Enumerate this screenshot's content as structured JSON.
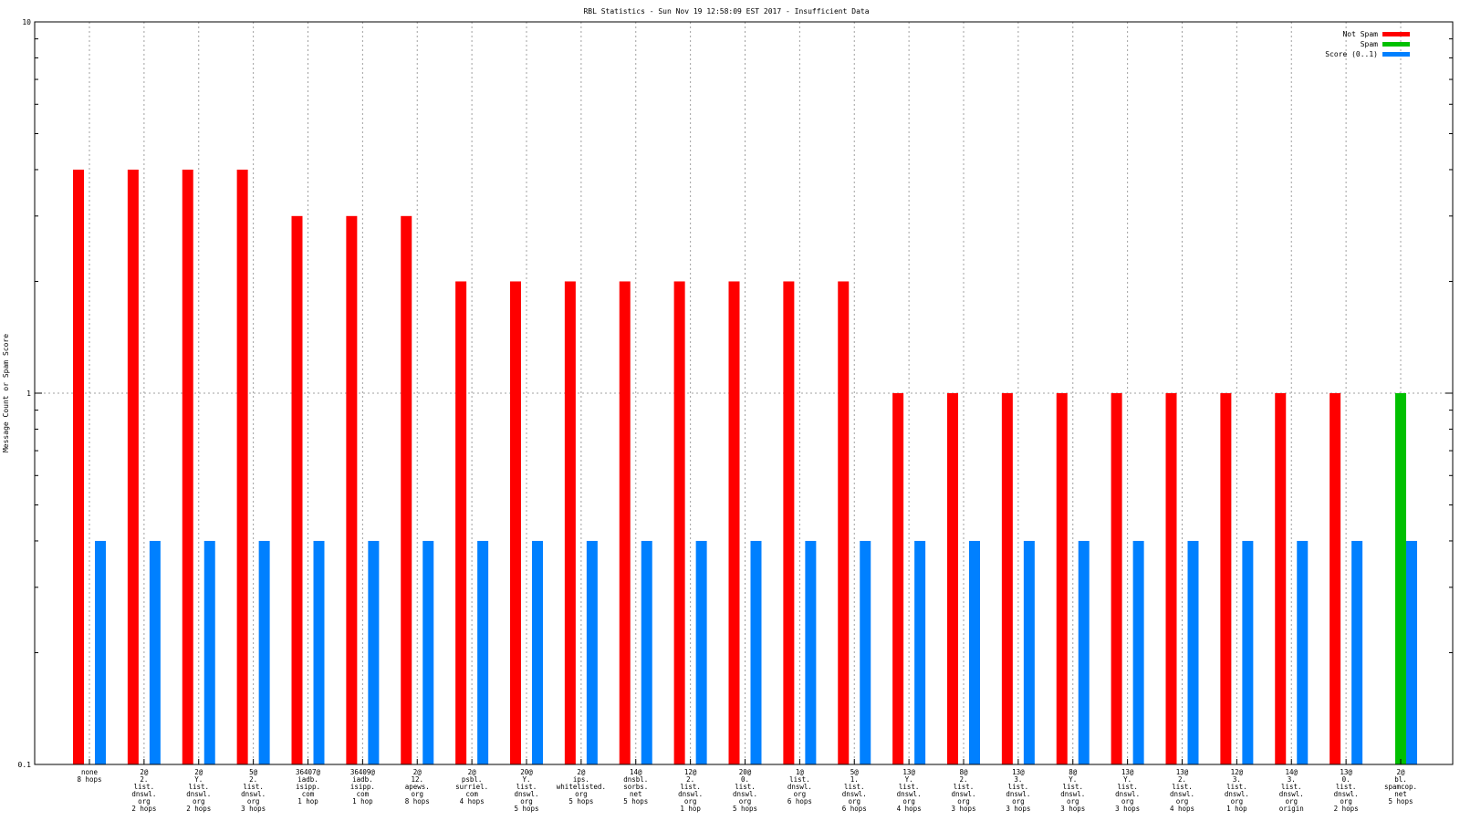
{
  "chart_data": {
    "type": "bar",
    "title": "RBL Statistics - Sun Nov 19 12:58:09 EST 2017 - Insufficient Data",
    "ylabel": "Message Count or Spam Score",
    "xlabel": "",
    "yscale": "log",
    "ylim": [
      0.1,
      10
    ],
    "yticks": [
      "0.1",
      "1",
      "10"
    ],
    "grid": true,
    "legend_position": "top-right",
    "categories": [
      "none\n8 hops",
      "2@\n2.\nlist.\ndnswl.\norg\n2 hops",
      "2@\nY.\nlist.\ndnswl.\norg\n2 hops",
      "5@\n2.\nlist.\ndnswl.\norg\n3 hops",
      "36407@\niadb.\nisipp.\ncom\n1 hop",
      "36409@\niadb.\nisipp.\ncom\n1 hop",
      "2@\n12.\napews.\norg\n8 hops",
      "2@\npsbl.\nsurriel.\ncom\n4 hops",
      "20@\nY.\nlist.\ndnswl.\norg\n5 hops",
      "2@\nips.\nwhitelisted.\norg\n5 hops",
      "14@\ndnsbl.\nsorbs.\nnet\n5 hops",
      "12@\n2.\nlist.\ndnswl.\norg\n1 hop",
      "20@\n0.\nlist.\ndnswl.\norg\n5 hops",
      "1@\nlist.\ndnswl.\norg\n6 hops",
      "5@\n1.\nlist.\ndnswl.\norg\n6 hops",
      "13@\nY.\nlist.\ndnswl.\norg\n4 hops",
      "8@\n2.\nlist.\ndnswl.\norg\n3 hops",
      "13@\n3.\nlist.\ndnswl.\norg\n3 hops",
      "8@\nY.\nlist.\ndnswl.\norg\n3 hops",
      "13@\nY.\nlist.\ndnswl.\norg\n3 hops",
      "13@\n2.\nlist.\ndnswl.\norg\n4 hops",
      "12@\n3.\nlist.\ndnswl.\norg\n1 hop",
      "14@\n3.\nlist.\ndnswl.\norg\norigin",
      "13@\n0.\nlist.\ndnswl.\norg\n2 hops",
      "2@\nbl.\nspamcop.\nnet\n5 hops"
    ],
    "series": [
      {
        "name": "Not Spam",
        "color": "#ff0000",
        "values": [
          4,
          4,
          4,
          4,
          3,
          3,
          3,
          2,
          2,
          2,
          2,
          2,
          2,
          2,
          2,
          1,
          1,
          1,
          1,
          1,
          1,
          1,
          1,
          1,
          0
        ]
      },
      {
        "name": "Spam",
        "color": "#00c000",
        "values": [
          0,
          0,
          0,
          0,
          0,
          0,
          0,
          0,
          0,
          0,
          0,
          0,
          0,
          0,
          0,
          0,
          0,
          0,
          0,
          0,
          0,
          0,
          0,
          0,
          1
        ]
      },
      {
        "name": "Score (0..1)",
        "color": "#0080ff",
        "values": [
          0.4,
          0.4,
          0.4,
          0.4,
          0.4,
          0.4,
          0.4,
          0.4,
          0.4,
          0.4,
          0.4,
          0.4,
          0.4,
          0.4,
          0.4,
          0.4,
          0.4,
          0.4,
          0.4,
          0.4,
          0.4,
          0.4,
          0.4,
          0.4,
          0.4
        ]
      }
    ]
  }
}
